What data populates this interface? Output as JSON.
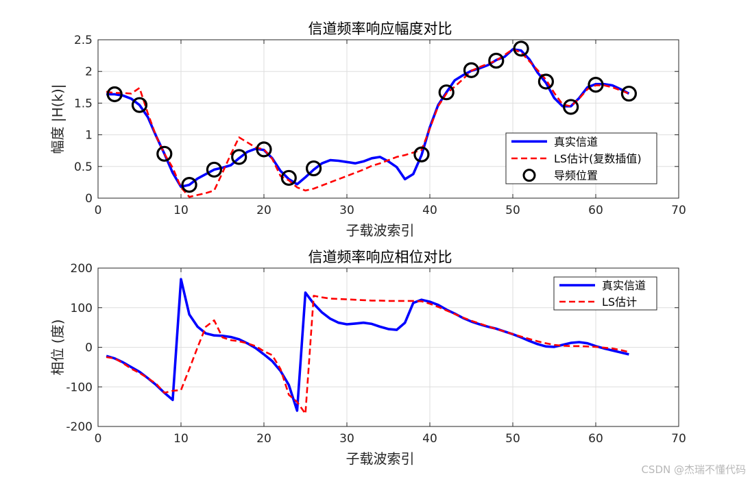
{
  "watermark": "CSDN @杰瑞不懂代码",
  "chart_data": [
    {
      "type": "line",
      "title": "信道频率响应幅度对比",
      "xlabel": "子载波索引",
      "ylabel": "幅度 |H(k)|",
      "xlim": [
        0,
        70
      ],
      "ylim": [
        0,
        2.5
      ],
      "xticks": [
        0,
        10,
        20,
        30,
        40,
        50,
        60,
        70
      ],
      "yticks": [
        0,
        0.5,
        1,
        1.5,
        2,
        2.5
      ],
      "xtick_labels": [
        "0",
        "10",
        "20",
        "30",
        "40",
        "50",
        "60",
        "70"
      ],
      "ytick_labels": [
        "0",
        "0.5",
        "1",
        "1.5",
        "2",
        "2.5"
      ],
      "grid": true,
      "legend_position": "bottom-right",
      "series": [
        {
          "name": "真实信道",
          "color": "#0000ff",
          "style": "solid",
          "x": [
            1,
            2,
            3,
            4,
            5,
            6,
            7,
            8,
            9,
            10,
            11,
            12,
            13,
            14,
            15,
            16,
            17,
            18,
            19,
            20,
            21,
            22,
            23,
            24,
            25,
            26,
            27,
            28,
            29,
            30,
            31,
            32,
            33,
            34,
            35,
            36,
            37,
            38,
            39,
            40,
            41,
            42,
            43,
            44,
            45,
            46,
            47,
            48,
            49,
            50,
            51,
            52,
            53,
            54,
            55,
            56,
            57,
            58,
            59,
            60,
            61,
            62,
            63,
            64
          ],
          "y": [
            1.64,
            1.64,
            1.62,
            1.57,
            1.47,
            1.28,
            0.98,
            0.7,
            0.4,
            0.18,
            0.21,
            0.31,
            0.38,
            0.45,
            0.48,
            0.52,
            0.63,
            0.73,
            0.78,
            0.76,
            0.63,
            0.43,
            0.3,
            0.22,
            0.33,
            0.45,
            0.55,
            0.6,
            0.59,
            0.57,
            0.55,
            0.58,
            0.63,
            0.65,
            0.58,
            0.49,
            0.3,
            0.38,
            0.68,
            1.12,
            1.47,
            1.67,
            1.86,
            1.94,
            2.01,
            2.05,
            2.1,
            2.18,
            2.23,
            2.35,
            2.33,
            2.19,
            1.98,
            1.82,
            1.58,
            1.45,
            1.45,
            1.58,
            1.75,
            1.8,
            1.8,
            1.78,
            1.72,
            1.65
          ]
        },
        {
          "name": "LS估计(复数插值)",
          "color": "#ff0000",
          "style": "dashed",
          "x": [
            1,
            2,
            3,
            4,
            5,
            6,
            7,
            8,
            9,
            10,
            11,
            12,
            13,
            14,
            15,
            16,
            17,
            18,
            19,
            20,
            21,
            22,
            23,
            24,
            25,
            26,
            27,
            28,
            29,
            30,
            31,
            32,
            33,
            34,
            35,
            36,
            37,
            38,
            39,
            40,
            41,
            42,
            43,
            44,
            45,
            46,
            47,
            48,
            49,
            50,
            51,
            52,
            53,
            54,
            55,
            56,
            57,
            58,
            59,
            60,
            61,
            62,
            63,
            64
          ],
          "y": [
            1.68,
            1.66,
            1.66,
            1.65,
            1.74,
            1.34,
            0.98,
            0.7,
            0.48,
            0.17,
            0.02,
            0.05,
            0.08,
            0.12,
            0.4,
            0.69,
            0.96,
            0.88,
            0.8,
            0.77,
            0.62,
            0.35,
            0.28,
            0.17,
            0.12,
            0.15,
            0.2,
            0.25,
            0.3,
            0.35,
            0.4,
            0.45,
            0.51,
            0.55,
            0.6,
            0.65,
            0.68,
            0.72,
            0.76,
            1.1,
            1.45,
            1.65,
            1.76,
            1.88,
            2.01,
            2.07,
            2.12,
            2.17,
            2.26,
            2.35,
            2.3,
            2.16,
            2.02,
            1.87,
            1.66,
            1.48,
            1.45,
            1.57,
            1.72,
            1.78,
            1.78,
            1.75,
            1.7,
            1.65
          ]
        },
        {
          "name": "导频位置",
          "color": "#000000",
          "style": "marker-circle",
          "x": [
            2,
            5,
            8,
            11,
            14,
            17,
            20,
            23,
            26,
            39,
            42,
            45,
            48,
            51,
            54,
            57,
            60,
            64
          ],
          "y": [
            1.64,
            1.47,
            0.7,
            0.21,
            0.45,
            0.65,
            0.77,
            0.32,
            0.47,
            0.69,
            1.67,
            2.02,
            2.17,
            2.36,
            1.84,
            1.44,
            1.79,
            1.65
          ]
        }
      ]
    },
    {
      "type": "line",
      "title": "信道频率响应相位对比",
      "xlabel": "子载波索引",
      "ylabel": "相位 (度)",
      "xlim": [
        0,
        70
      ],
      "ylim": [
        -200,
        200
      ],
      "xticks": [
        0,
        10,
        20,
        30,
        40,
        50,
        60,
        70
      ],
      "yticks": [
        -200,
        -100,
        0,
        100,
        200
      ],
      "xtick_labels": [
        "0",
        "10",
        "20",
        "30",
        "40",
        "50",
        "60",
        "70"
      ],
      "ytick_labels": [
        "-200",
        "-100",
        "0",
        "100",
        "200"
      ],
      "grid": true,
      "legend_position": "top-right",
      "series": [
        {
          "name": "真实信道",
          "color": "#0000ff",
          "style": "solid",
          "x": [
            1,
            2,
            3,
            4,
            5,
            6,
            7,
            8,
            9,
            10,
            11,
            12,
            13,
            14,
            15,
            16,
            17,
            18,
            19,
            20,
            21,
            22,
            23,
            24,
            25,
            26,
            27,
            28,
            29,
            30,
            31,
            32,
            33,
            34,
            35,
            36,
            37,
            38,
            39,
            40,
            41,
            42,
            43,
            44,
            45,
            46,
            47,
            48,
            49,
            50,
            51,
            52,
            53,
            54,
            55,
            56,
            57,
            58,
            59,
            60,
            61,
            62,
            63,
            64
          ],
          "y": [
            -22,
            -28,
            -38,
            -50,
            -62,
            -78,
            -95,
            -115,
            -133,
            172,
            83,
            52,
            35,
            30,
            29,
            26,
            20,
            10,
            -2,
            -18,
            -35,
            -60,
            -95,
            -160,
            138,
            110,
            88,
            72,
            62,
            58,
            60,
            62,
            59,
            52,
            46,
            44,
            62,
            112,
            120,
            115,
            107,
            95,
            85,
            74,
            65,
            58,
            52,
            47,
            40,
            33,
            25,
            16,
            8,
            2,
            1,
            6,
            11,
            13,
            10,
            3,
            -3,
            -8,
            -13,
            -18
          ]
        },
        {
          "name": "LS估计",
          "color": "#ff0000",
          "style": "dashed",
          "x": [
            1,
            2,
            3,
            4,
            5,
            6,
            7,
            8,
            9,
            10,
            11,
            12,
            13,
            14,
            15,
            16,
            17,
            18,
            19,
            20,
            21,
            22,
            23,
            24,
            25,
            26,
            27,
            28,
            29,
            30,
            31,
            32,
            33,
            34,
            35,
            36,
            37,
            38,
            39,
            40,
            41,
            42,
            43,
            44,
            45,
            46,
            47,
            48,
            49,
            50,
            51,
            52,
            53,
            54,
            55,
            56,
            57,
            58,
            59,
            60,
            61,
            62,
            63,
            64
          ],
          "y": [
            -25,
            -28,
            -40,
            -54,
            -65,
            -78,
            -92,
            -115,
            -110,
            -108,
            -55,
            0,
            52,
            68,
            25,
            18,
            15,
            10,
            3,
            -10,
            -20,
            -55,
            -120,
            -138,
            -168,
            130,
            126,
            123,
            122,
            121,
            120,
            119,
            118,
            118,
            117,
            117,
            117,
            117,
            116,
            110,
            102,
            93,
            84,
            75,
            67,
            60,
            53,
            46,
            40,
            33,
            27,
            21,
            15,
            10,
            6,
            4,
            3,
            3,
            2,
            1,
            -1,
            -3,
            -7,
            -12
          ]
        }
      ]
    }
  ]
}
